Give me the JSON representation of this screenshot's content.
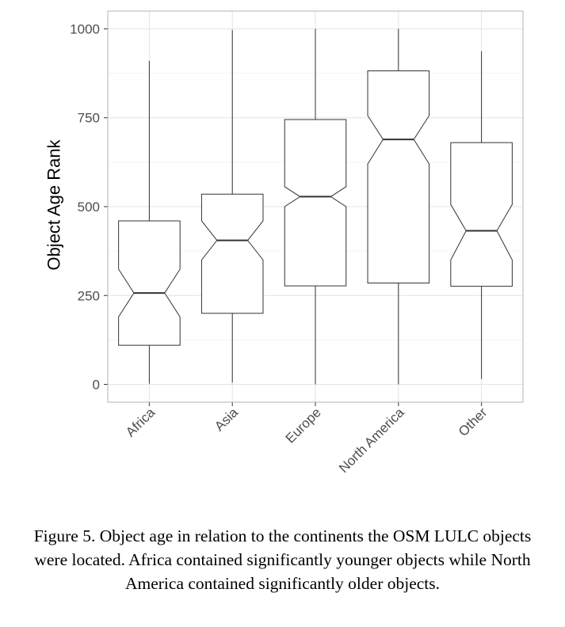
{
  "chart_data": {
    "type": "box",
    "notched": true,
    "ylabel": "Object Age Rank",
    "xlabel": "",
    "ylim": [
      -50,
      1050
    ],
    "yticks": [
      0,
      250,
      500,
      750,
      1000
    ],
    "grid": true,
    "categories": [
      "Africa",
      "Asia",
      "Europe",
      "North America",
      "Other"
    ],
    "boxes": [
      {
        "label": "Africa",
        "whisker_low": 2,
        "q1": 110,
        "median": 257,
        "q3": 460,
        "whisker_high": 910,
        "notch_low": 190,
        "notch_high": 324
      },
      {
        "label": "Asia",
        "whisker_low": 5,
        "q1": 200,
        "median": 405,
        "q3": 535,
        "whisker_high": 997,
        "notch_low": 350,
        "notch_high": 460
      },
      {
        "label": "Europe",
        "whisker_low": 0,
        "q1": 277,
        "median": 528,
        "q3": 745,
        "whisker_high": 1000,
        "notch_low": 500,
        "notch_high": 556
      },
      {
        "label": "North America",
        "whisker_low": 0,
        "q1": 285,
        "median": 689,
        "q3": 882,
        "whisker_high": 1000,
        "notch_low": 620,
        "notch_high": 756
      },
      {
        "label": "Other",
        "whisker_low": 15,
        "q1": 276,
        "median": 432,
        "q3": 680,
        "whisker_high": 937,
        "notch_low": 350,
        "notch_high": 506
      }
    ]
  },
  "caption": "Figure 5. Object age in relation to the continents the OSM LULC objects were located. Africa contained significantly younger objects while North America contained significantly older objects."
}
